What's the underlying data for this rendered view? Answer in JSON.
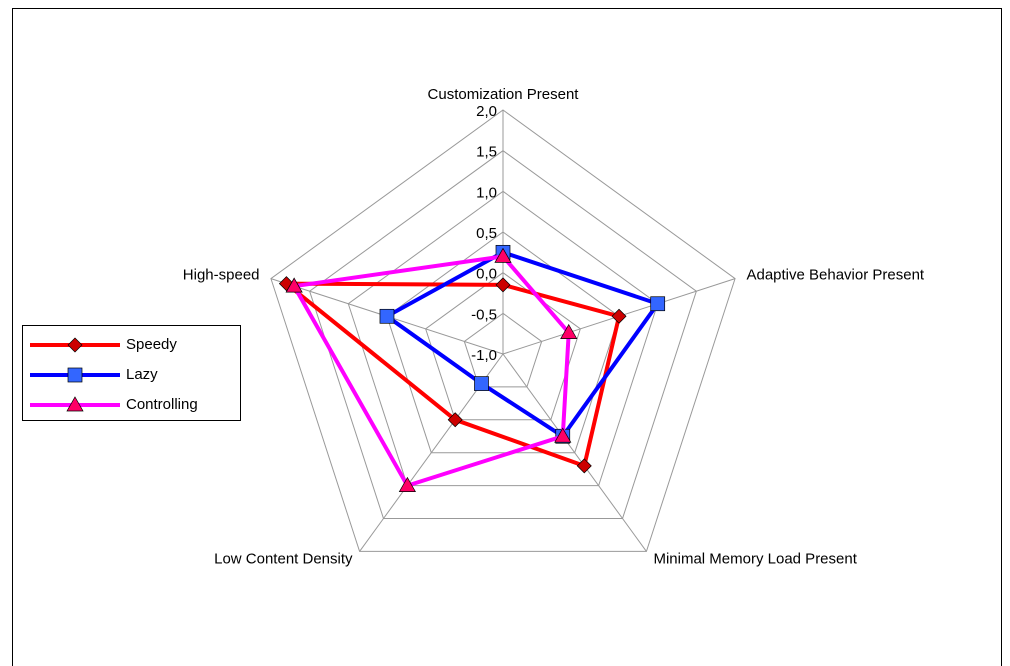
{
  "chart_data": {
    "type": "radar",
    "categories": [
      "Customization Present",
      "Adaptive Behavior Present",
      "Minimal Memory Load Present",
      "Low Content Density",
      "High-speed"
    ],
    "series": [
      {
        "name": "Speedy",
        "color": "#ff0000",
        "marker_color": "#cc0000",
        "marker": "diamond",
        "values": [
          -0.15,
          0.5,
          0.7,
          0,
          1.8
        ]
      },
      {
        "name": "Lazy",
        "color": "#0000ff",
        "marker_color": "#3366ff",
        "marker": "square",
        "values": [
          0.25,
          1.0,
          0.25,
          -0.55,
          0.5
        ]
      },
      {
        "name": "Controlling",
        "color": "#ff00ff",
        "marker_color": "#ff0066",
        "marker": "triangle",
        "values": [
          0.2,
          -0.15,
          0.25,
          1.0,
          1.7
        ]
      }
    ],
    "ylim": [
      -1,
      2
    ],
    "yticks": [
      {
        "value": -1,
        "label": "-1,0"
      },
      {
        "value": -0.5,
        "label": "-0,5"
      },
      {
        "value": 0,
        "label": "0,0"
      },
      {
        "value": 0.5,
        "label": "0,5"
      },
      {
        "value": 1,
        "label": "1,0"
      },
      {
        "value": 1.5,
        "label": "1,5"
      },
      {
        "value": 2,
        "label": "2,0"
      }
    ],
    "grid": true,
    "legend": "left"
  }
}
